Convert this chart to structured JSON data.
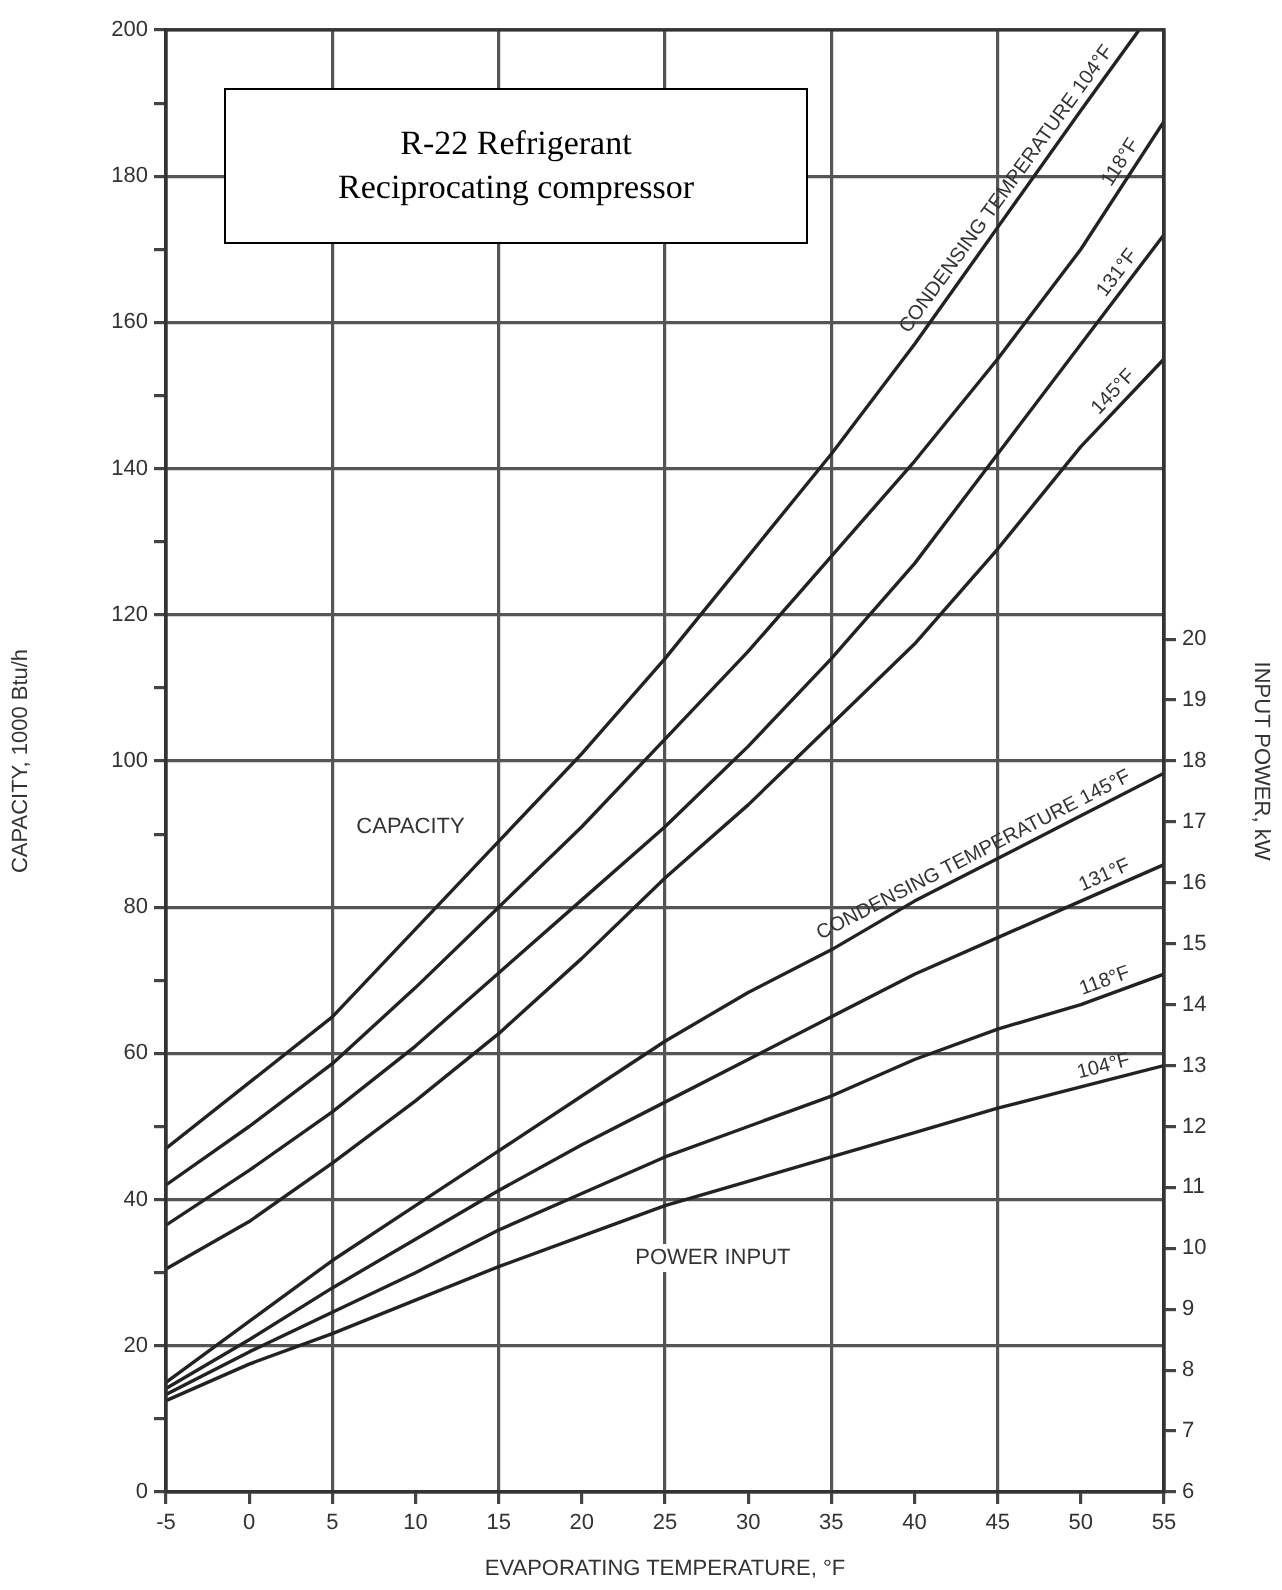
{
  "chart_data": {
    "type": "line",
    "title": "R-22 Refrigerant",
    "subtitle": "Reciprocating compressor",
    "xlabel": "EVAPORATING TEMPERATURE, °F",
    "ylabel": "CAPACITY, 1000 Btu/h",
    "y2label": "INPUT POWER, kW",
    "x": [
      -5,
      0,
      5,
      10,
      15,
      20,
      25,
      30,
      35,
      40,
      45,
      50,
      55
    ],
    "xlim": [
      -5,
      55
    ],
    "xticks": [
      -5,
      0,
      5,
      10,
      15,
      20,
      25,
      30,
      35,
      40,
      45,
      50,
      55
    ],
    "ylim": [
      0,
      200
    ],
    "yticks": [
      0,
      {
        "value": 10,
        "label": null
      },
      20,
      {
        "value": 30,
        "label": null
      },
      40,
      {
        "value": 50,
        "label": null
      },
      60,
      {
        "value": 70,
        "label": null
      },
      80,
      {
        "value": 90,
        "label": null
      },
      100,
      {
        "value": 110,
        "label": null
      },
      120,
      {
        "value": 130,
        "label": null
      },
      140,
      {
        "value": 150,
        "label": null
      },
      160,
      {
        "value": 170,
        "label": null
      },
      180,
      {
        "value": 190,
        "label": null
      },
      200
    ],
    "y2lim": [
      6,
      30
    ],
    "y2ticks": [
      6,
      7,
      8,
      9,
      10,
      11,
      12,
      13,
      14,
      15,
      16,
      17,
      18,
      19,
      20
    ],
    "grid": true,
    "legend": false,
    "marker": "none",
    "line_style": "solid",
    "annotations": [
      "CAPACITY",
      "POWER INPUT"
    ],
    "series": [
      {
        "name": "CONDENSING TEMPERATURE 104°F",
        "color": "#222222",
        "x": [
          -5,
          0,
          5,
          10,
          15,
          20,
          25,
          30,
          35,
          40,
          45,
          50,
          53.5
        ],
        "values": [
          47,
          56,
          65,
          77,
          89,
          101,
          114,
          128,
          142,
          157,
          173,
          189,
          200
        ]
      },
      {
        "name": "118°F",
        "color": "#222222",
        "values": [
          42,
          50,
          58.6,
          69,
          80,
          91,
          103,
          115,
          128,
          141,
          155,
          170,
          187.5
        ]
      },
      {
        "name": "131°F",
        "color": "#222222",
        "values": [
          36.5,
          44,
          52,
          61,
          71,
          81,
          91,
          102,
          114,
          127,
          142,
          157,
          172
        ]
      },
      {
        "name": "145°F",
        "color": "#222222",
        "values": [
          30.5,
          37,
          45,
          53.5,
          62.7,
          73,
          84,
          94,
          105,
          116,
          129,
          143,
          155
        ]
      },
      {
        "name": "CONDENSING TEMPERATURE 145°F",
        "color": "#222222",
        "axis": "y2",
        "values": [
          7.8,
          8.8,
          9.8,
          10.7,
          11.6,
          12.5,
          13.4,
          14.2,
          14.9,
          15.7,
          16.4,
          17.1,
          17.8
        ]
      },
      {
        "name": "131°F",
        "color": "#222222",
        "axis": "y2",
        "values": [
          7.7,
          8.5,
          9.35,
          10.15,
          10.95,
          11.7,
          12.4,
          13.1,
          13.8,
          14.5,
          15.1,
          15.7,
          16.3
        ]
      },
      {
        "name": "118°F",
        "color": "#222222",
        "axis": "y2",
        "values": [
          7.6,
          8.3,
          8.95,
          9.6,
          10.3,
          10.9,
          11.5,
          12.0,
          12.5,
          13.1,
          13.6,
          14.0,
          14.5
        ]
      },
      {
        "name": "104°F",
        "color": "#222222",
        "axis": "y2",
        "values": [
          7.5,
          8.1,
          8.6,
          9.15,
          9.7,
          10.2,
          10.7,
          11.1,
          11.5,
          11.9,
          12.3,
          12.65,
          13.0
        ]
      }
    ]
  }
}
